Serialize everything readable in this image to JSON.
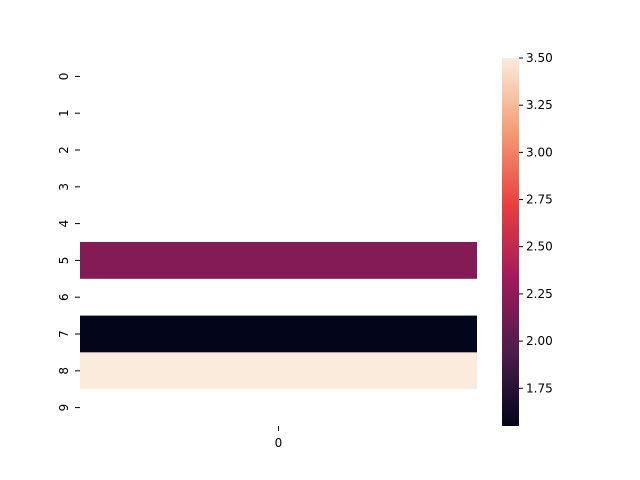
{
  "chart_data": {
    "type": "heatmap",
    "title": "",
    "xlabel": "",
    "ylabel": "",
    "x_categories": [
      "0"
    ],
    "y_categories": [
      "0",
      "1",
      "2",
      "3",
      "4",
      "5",
      "6",
      "7",
      "8",
      "9"
    ],
    "values": [
      null,
      null,
      null,
      null,
      null,
      2.2,
      null,
      1.55,
      3.5,
      null
    ],
    "colorbar": {
      "vmin": 1.55,
      "vmax": 3.5,
      "ticks": [
        "1.75",
        "2.00",
        "2.25",
        "2.50",
        "2.75",
        "3.00",
        "3.25",
        "3.50"
      ],
      "colormap": "rocket",
      "stops": [
        "#03051a",
        "#4c1d4b",
        "#a11a5b",
        "#e83f3f",
        "#f69c73",
        "#faebdd"
      ]
    },
    "grid": false,
    "legend": "colorbar-right"
  }
}
